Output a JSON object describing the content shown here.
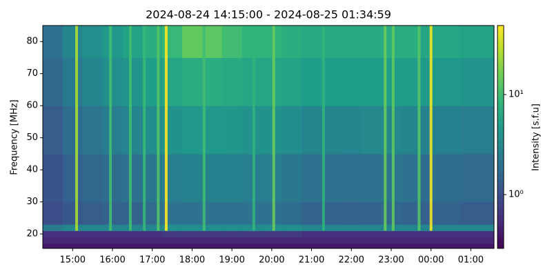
{
  "chart_data": {
    "type": "heatmap",
    "title": "2024-08-24 14:15:00 - 2024-08-25 01:34:59",
    "y_label": "Frequency [MHz]",
    "colorbar_label": "Intensity [s.f.u]",
    "cmap": "viridis",
    "colorscale": "log",
    "clim": [
      0.29,
      49
    ],
    "cticks": [
      {
        "value": 1,
        "label": "10⁰"
      },
      {
        "value": 10,
        "label": "10¹"
      }
    ],
    "xlim": [
      14.25,
      25.583
    ],
    "ylim": [
      15.5,
      85
    ],
    "xticks": [
      {
        "value": 15,
        "label": "15:00"
      },
      {
        "value": 16,
        "label": "16:00"
      },
      {
        "value": 17,
        "label": "17:00"
      },
      {
        "value": 18,
        "label": "18:00"
      },
      {
        "value": 19,
        "label": "19:00"
      },
      {
        "value": 20,
        "label": "20:00"
      },
      {
        "value": 21,
        "label": "21:00"
      },
      {
        "value": 22,
        "label": "22:00"
      },
      {
        "value": 23,
        "label": "23:00"
      },
      {
        "value": 24,
        "label": "00:00"
      },
      {
        "value": 25,
        "label": "01:00"
      }
    ],
    "yticks": [
      20,
      30,
      40,
      50,
      60,
      70,
      80
    ],
    "x_edges": [
      14.25,
      14.75,
      15.25,
      15.75,
      16.25,
      16.75,
      17.25,
      17.75,
      18.25,
      18.75,
      19.25,
      19.75,
      20.25,
      20.75,
      21.25,
      21.75,
      22.25,
      22.75,
      23.25,
      23.75,
      24.25,
      24.75,
      25.25,
      25.583
    ],
    "y_edges": [
      15.5,
      17,
      19,
      21,
      23,
      30,
      45,
      60,
      75,
      85
    ],
    "values": [
      [
        0.4,
        0.4,
        0.4,
        0.4,
        0.4,
        0.4,
        0.4,
        0.4,
        0.4,
        0.4,
        0.4,
        0.4,
        0.4,
        0.4,
        0.4,
        0.4,
        0.4,
        0.4,
        0.4,
        0.4,
        0.4,
        0.4,
        0.4
      ],
      [
        0.5,
        0.5,
        0.5,
        0.5,
        0.5,
        0.5,
        0.5,
        0.5,
        0.5,
        0.5,
        0.5,
        0.5,
        0.5,
        0.5,
        0.5,
        0.5,
        0.5,
        0.5,
        0.5,
        0.5,
        0.5,
        0.5,
        0.5
      ],
      [
        0.6,
        0.6,
        0.6,
        0.6,
        0.6,
        0.6,
        0.7,
        0.7,
        0.7,
        0.7,
        0.7,
        0.7,
        0.7,
        0.6,
        0.6,
        0.6,
        0.6,
        0.6,
        0.6,
        0.6,
        0.6,
        0.6,
        0.6
      ],
      [
        2.5,
        3,
        3,
        3,
        3,
        3,
        3.5,
        3.5,
        3.5,
        3.5,
        3.5,
        3.5,
        3.5,
        3,
        3,
        3,
        3,
        3,
        3,
        3,
        3,
        3,
        3
      ],
      [
        1,
        1.2,
        1.3,
        1.4,
        1.5,
        1.7,
        2,
        2,
        2,
        2,
        2,
        2,
        1.8,
        1.5,
        1.5,
        1.4,
        1.5,
        1.6,
        1.5,
        1.4,
        1.4,
        1.3,
        1.3
      ],
      [
        1.1,
        1.4,
        1.6,
        1.8,
        2,
        2.3,
        2.6,
        2.8,
        2.8,
        2.8,
        2.6,
        2.6,
        2.3,
        2,
        2,
        1.9,
        2,
        2.2,
        2,
        1.8,
        1.8,
        1.7,
        1.7
      ],
      [
        1.3,
        1.8,
        2.2,
        2.6,
        3,
        3.5,
        4,
        4.5,
        4.5,
        4.3,
        4,
        4,
        3.5,
        3,
        3,
        3,
        3.2,
        3.3,
        3,
        2.8,
        2.8,
        2.6,
        2.6
      ],
      [
        1.6,
        2.4,
        3,
        3.6,
        4.2,
        5,
        6,
        7,
        7,
        6.5,
        6,
        6,
        5.5,
        5,
        5,
        5,
        5,
        5,
        4.8,
        4.5,
        4.5,
        4.2,
        4.2
      ],
      [
        2,
        3,
        3.6,
        4.5,
        5.5,
        7,
        9,
        14,
        13,
        10,
        8,
        8,
        7,
        6.5,
        6.5,
        6.5,
        6.5,
        7,
        7,
        6,
        6,
        5.5,
        5.5
      ]
    ],
    "bursts": {
      "x": [
        15.1,
        15.95,
        16.45,
        16.8,
        17.15,
        17.35,
        18.3,
        19.55,
        20.05,
        21.3,
        22.85,
        23.05,
        23.7,
        24.0
      ],
      "values": [
        25,
        10,
        10,
        9,
        12,
        49,
        10,
        8,
        15,
        8,
        15,
        14,
        12,
        45
      ]
    }
  }
}
